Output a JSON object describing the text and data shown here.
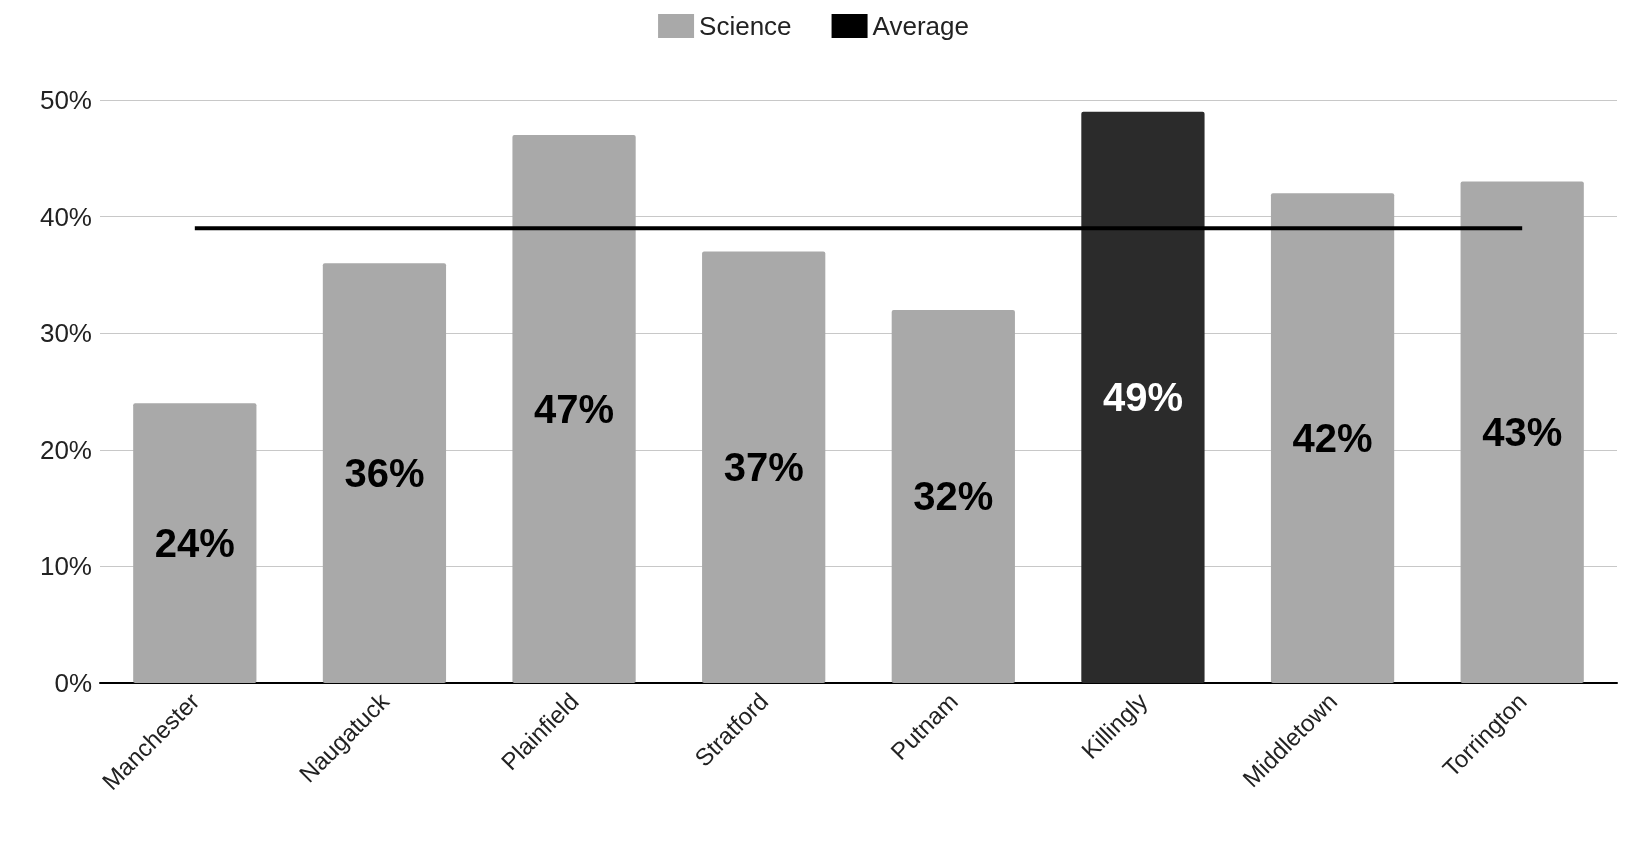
{
  "chart_data": {
    "type": "bar",
    "categories": [
      "Manchester",
      "Naugatuck",
      "Plainfield",
      "Stratford",
      "Putnam",
      "Killingly",
      "Middletown",
      "Torrington"
    ],
    "series": [
      {
        "name": "Science",
        "colors": [
          "#a9a9a9",
          "#a9a9a9",
          "#a9a9a9",
          "#a9a9a9",
          "#a9a9a9",
          "#2b2b2b",
          "#a9a9a9",
          "#a9a9a9"
        ],
        "values": [
          24,
          36,
          47,
          37,
          32,
          49,
          42,
          43
        ],
        "value_labels": [
          "24%",
          "36%",
          "47%",
          "37%",
          "32%",
          "49%",
          "42%",
          "43%"
        ]
      },
      {
        "name": "Average",
        "type": "line",
        "color": "#000000",
        "values": [
          39,
          39,
          39,
          39,
          39,
          39,
          39,
          39
        ]
      }
    ],
    "ylim": [
      0,
      50
    ],
    "yticks": [
      {
        "value": 0,
        "label": "0%"
      },
      {
        "value": 10,
        "label": "10%"
      },
      {
        "value": 20,
        "label": "20%"
      },
      {
        "value": 30,
        "label": "30%"
      },
      {
        "value": 40,
        "label": "40%"
      },
      {
        "value": 50,
        "label": "50%"
      }
    ],
    "grid": "y",
    "legend": "top",
    "marker": "none"
  }
}
